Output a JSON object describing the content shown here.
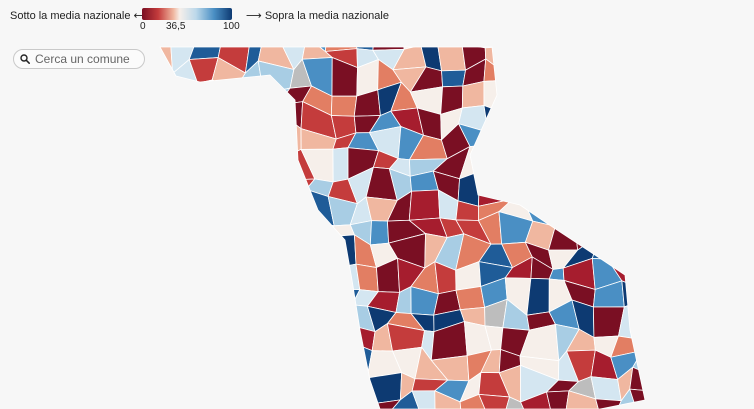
{
  "legend": {
    "below_label": "Sotto la media nazionale ⟵",
    "above_label": "⟶ Sopra la media nazionale",
    "tick_min": "0",
    "tick_mid": "36,5",
    "tick_max": "100",
    "colors": {
      "low": "#7a0f23",
      "mid_low": "#c43c3c",
      "mid": "#f6efea",
      "mid_high": "#4a8fc4",
      "high": "#0d3a72",
      "no_data": "#bdbdbd"
    }
  },
  "search": {
    "placeholder": "Cerca un comune",
    "value": ""
  },
  "map": {
    "palette": [
      "#7a0f23",
      "#a61d2e",
      "#c43c3c",
      "#e27e63",
      "#f0b7a0",
      "#f6efea",
      "#d4e6f1",
      "#a8cde4",
      "#4a8fc4",
      "#1f5c98",
      "#0d3a72",
      "#bdbdbd"
    ]
  }
}
